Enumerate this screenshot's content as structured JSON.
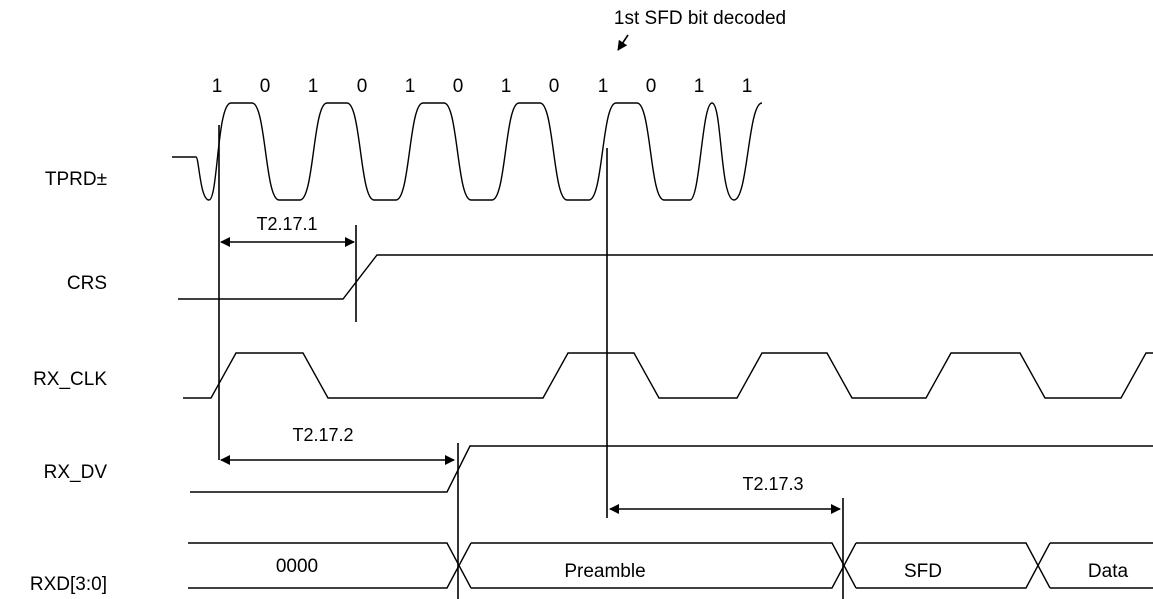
{
  "annotation": {
    "text": "1st SFD bit decoded"
  },
  "bits": [
    "1",
    "0",
    "1",
    "0",
    "1",
    "0",
    "1",
    "0",
    "1",
    "0",
    "1",
    "1"
  ],
  "signals": {
    "tprd": "TPRD±",
    "crs": "CRS",
    "rx_clk": "RX_CLK",
    "rx_dv": "RX_DV",
    "rxd": "RXD[3:0]"
  },
  "timing_params": {
    "t1": "T2.17.1",
    "t2": "T2.17.2",
    "t3": "T2.17.3"
  },
  "rxd_bus": [
    "0000",
    "Preamble",
    "SFD",
    "Data"
  ]
}
